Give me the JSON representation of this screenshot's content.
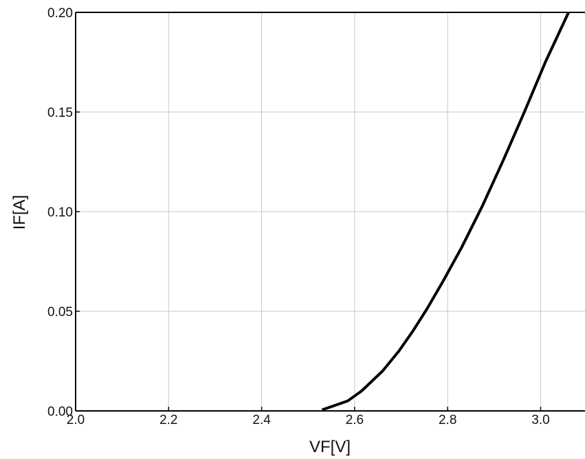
{
  "chart_data": {
    "type": "line",
    "title": "",
    "xlabel": "VF[V]",
    "ylabel": "IF[A]",
    "xlim": [
      2.0,
      3.1
    ],
    "ylim": [
      0.0,
      0.2
    ],
    "grid": true,
    "x_ticks": [
      2.0,
      2.2,
      2.4,
      2.6,
      2.8,
      3.0
    ],
    "x_tick_labels": [
      "2.0",
      "2.2",
      "2.4",
      "2.6",
      "2.8",
      "3.0"
    ],
    "y_ticks": [
      0.0,
      0.05,
      0.1,
      0.15,
      0.2
    ],
    "y_tick_labels": [
      "0.00",
      "0.05",
      "0.10",
      "0.15",
      "0.20"
    ],
    "series": [
      {
        "x": [
          2.53,
          2.585,
          2.615,
          2.66,
          2.695,
          2.725,
          2.755,
          2.79,
          2.83,
          2.875,
          2.92,
          2.965,
          3.01,
          3.06
        ],
        "y": [
          0.0005,
          0.005,
          0.01,
          0.02,
          0.03,
          0.04,
          0.051,
          0.065,
          0.082,
          0.103,
          0.126,
          0.15,
          0.175,
          0.2
        ],
        "color": "#000000"
      }
    ]
  }
}
